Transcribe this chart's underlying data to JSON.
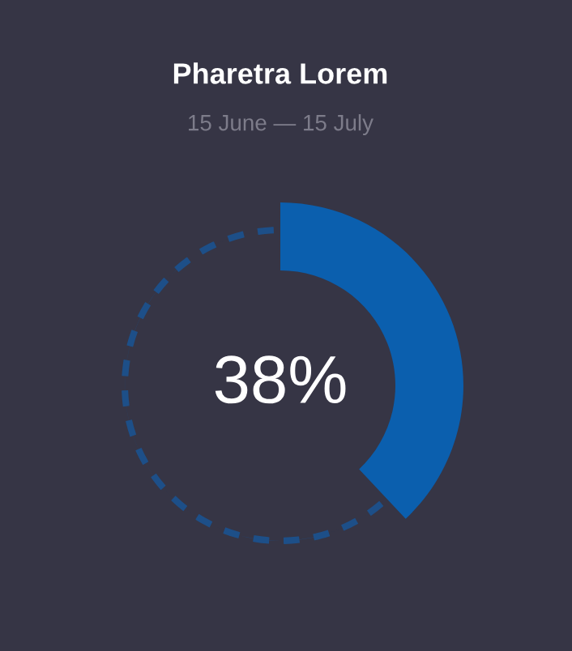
{
  "chart_data": {
    "type": "donut",
    "title": "Pharetra Lorem",
    "subtitle": "15 June — 15 July",
    "categories": [
      null,
      null
    ],
    "values": [
      38,
      62
    ],
    "colors": [
      "#0b5fae",
      "#1d4f88"
    ],
    "value_labels": [
      "38%",
      null
    ]
  }
}
